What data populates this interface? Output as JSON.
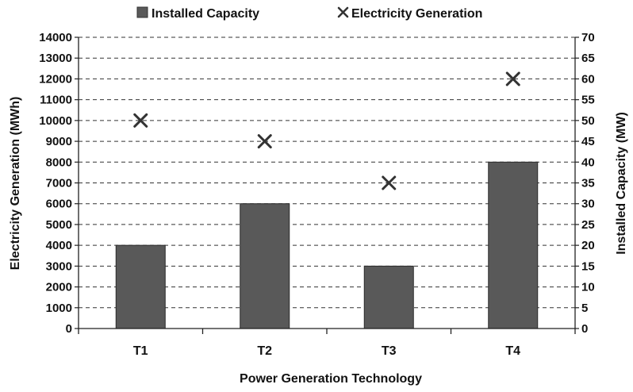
{
  "chart_data": {
    "type": "bar",
    "categories": [
      "T1",
      "T2",
      "T3",
      "T4"
    ],
    "series": [
      {
        "name": "Installed Capacity",
        "kind": "bar",
        "axis": "right",
        "values": [
          20,
          30,
          15,
          40
        ],
        "color": "#595959"
      },
      {
        "name": "Electricity Generation",
        "kind": "scatter",
        "marker": "x",
        "axis": "left",
        "values": [
          10000,
          9000,
          7000,
          12000
        ],
        "color": "#333333"
      }
    ],
    "xlabel": "Power Generation Technology",
    "ylabel_left": "Electricity Generation (MWh)",
    "ylabel_right": "Installed Capacity (MW)",
    "ylim_left": [
      0,
      14000
    ],
    "ylim_right": [
      0,
      70
    ],
    "yticks_left": [
      "0",
      "1000",
      "2000",
      "3000",
      "4000",
      "5000",
      "6000",
      "7000",
      "8000",
      "9000",
      "10000",
      "11000",
      "12000",
      "13000",
      "14000"
    ],
    "yticks_right": [
      "0",
      "5",
      "10",
      "15",
      "20",
      "25",
      "30",
      "35",
      "40",
      "45",
      "50",
      "55",
      "60",
      "65",
      "70"
    ],
    "grid": "horizontal dashed",
    "legend_position": "top"
  }
}
